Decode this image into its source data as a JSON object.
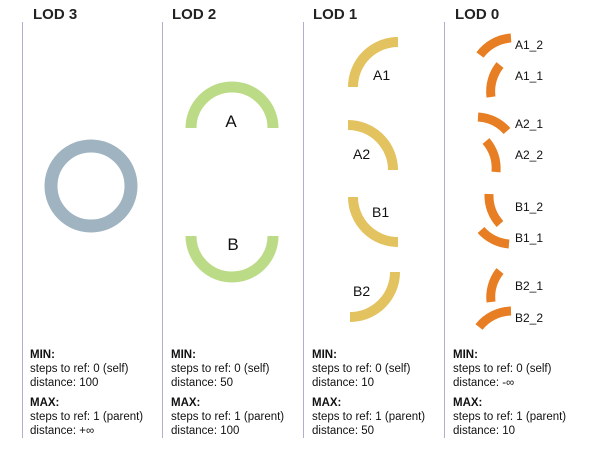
{
  "colors": {
    "lod3": "#9fb3c0",
    "lod2": "#bbdb87",
    "lod1": "#e3c35f",
    "lod0": "#e87e23",
    "divider": "#b0b0cc"
  },
  "columns": [
    {
      "title": "LOD 3",
      "min_label": "MIN:",
      "min_steps": "steps to ref: 0 (self)",
      "min_distance": "distance: 100",
      "max_label": "MAX:",
      "max_steps": "steps to ref: 1 (parent)",
      "max_distance": "distance: +∞"
    },
    {
      "title": "LOD 2",
      "labels": [
        "A",
        "B"
      ],
      "min_label": "MIN:",
      "min_steps": "steps to ref: 0 (self)",
      "min_distance": "distance: 50",
      "max_label": "MAX:",
      "max_steps": "steps to ref: 1 (parent)",
      "max_distance": "distance: 100"
    },
    {
      "title": "LOD 1",
      "labels": [
        "A1",
        "A2",
        "B1",
        "B2"
      ],
      "min_label": "MIN:",
      "min_steps": "steps to ref: 0 (self)",
      "min_distance": "distance: 10",
      "max_label": "MAX:",
      "max_steps": "steps to ref: 1 (parent)",
      "max_distance": "distance: 50"
    },
    {
      "title": "LOD 0",
      "labels": [
        "A1_2",
        "A1_1",
        "A2_1",
        "A2_2",
        "B1_2",
        "B1_1",
        "B2_1",
        "B2_2"
      ],
      "min_label": "MIN:",
      "min_steps": "steps to ref: 0 (self)",
      "min_distance": "distance: -∞",
      "max_label": "MAX:",
      "max_steps": "steps to ref: 1 (parent)",
      "max_distance": "distance: 10"
    }
  ]
}
